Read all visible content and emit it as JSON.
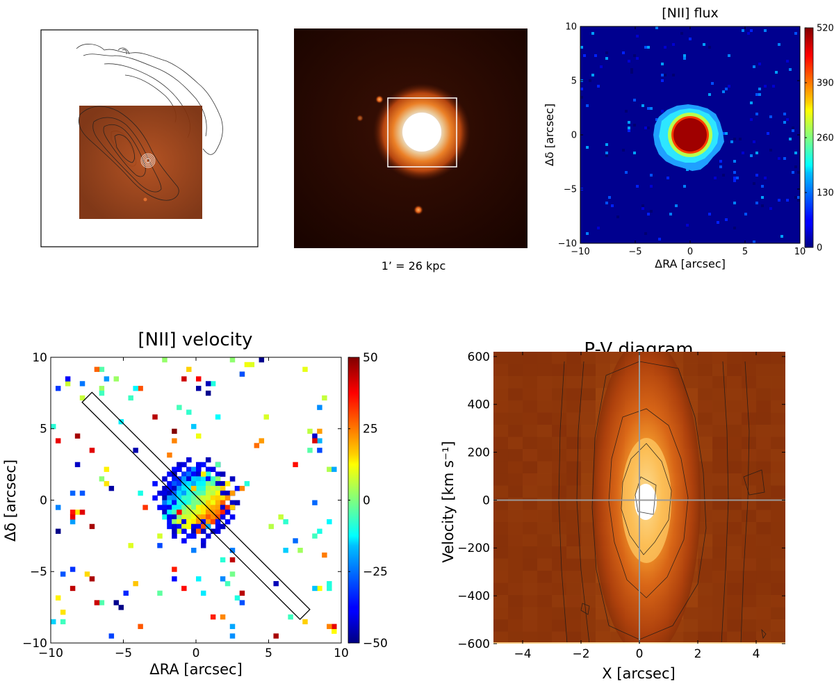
{
  "top_left": {
    "description_hidden": ""
  },
  "top_middle": {
    "scale_label": "1’ = 26 kpc"
  },
  "chart_data": [
    {
      "type": "heatmap",
      "title": "[NII] flux",
      "xlabel": "ΔRA [arcsec]",
      "ylabel": "Δδ [arcsec]",
      "xlim": [
        -10,
        10
      ],
      "ylim": [
        -10,
        10
      ],
      "xticks": [
        -10,
        -5,
        0,
        5,
        10
      ],
      "yticks": [
        -10,
        -5,
        0,
        5,
        10
      ],
      "colorbar": {
        "min": 0,
        "max": 520,
        "ticks": [
          0,
          130,
          260,
          390,
          520
        ],
        "colormap": "jet"
      },
      "features": [
        {
          "kind": "peak",
          "x": 0,
          "y": 0,
          "radius_arcsec": 1.5,
          "value": 520
        },
        {
          "kind": "halo",
          "x": 0,
          "y": 0,
          "radius_arcsec": 3.0,
          "value": 250
        }
      ]
    },
    {
      "type": "heatmap",
      "title": "[NII] velocity",
      "xlabel": "ΔRA [arcsec]",
      "ylabel": "Δδ [arcsec]",
      "xlim": [
        -10,
        10
      ],
      "ylim": [
        -10,
        10
      ],
      "xticks": [
        -10,
        -5,
        0,
        5,
        10
      ],
      "yticks": [
        -10,
        -5,
        0,
        5,
        10
      ],
      "colorbar": {
        "min": -50,
        "max": 50,
        "ticks": [
          -50,
          -25,
          0,
          25,
          50
        ],
        "colormap": "jet"
      },
      "slit": {
        "from": [
          -7.5,
          7.2
        ],
        "to": [
          7.5,
          -8.0
        ],
        "width_arcsec": 0.6
      }
    },
    {
      "type": "heatmap",
      "title": "P-V diagram",
      "xlabel": "X [arcsec]",
      "ylabel": "Velocity [km s⁻¹]",
      "xlim": [
        -5,
        5
      ],
      "ylim": [
        -600,
        620
      ],
      "xticks": [
        -4,
        -2,
        0,
        2,
        4
      ],
      "yticks": [
        -600,
        -400,
        -200,
        0,
        200,
        400,
        600
      ],
      "peak": {
        "x": 0.3,
        "velocity": 0
      },
      "reference_lines": {
        "x": 0,
        "velocity": 0
      }
    }
  ]
}
